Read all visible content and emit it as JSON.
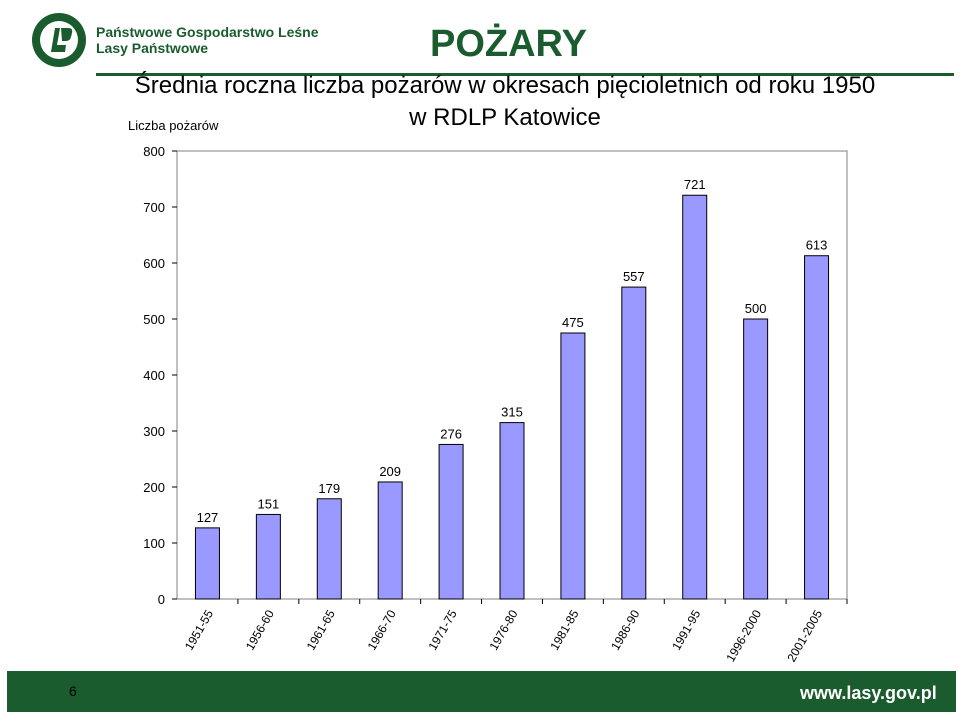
{
  "header": {
    "org_line1": "Państwowe Gospodarstwo Leśne",
    "org_line2": "Lasy Państwowe",
    "section": "POŻARY",
    "logo_text": "LASY PAŃSTWOWE",
    "logo_icon": "lasy-panstwowe-logo-icon"
  },
  "footer": {
    "page_number": "6",
    "url": "www.lasy.gov.pl"
  },
  "colors": {
    "brand_green": "#1a5c2e",
    "bar_fill": "#9999ff"
  },
  "chart_data": {
    "type": "bar",
    "title": "Średnia roczna liczba pożarów w okresach pięcioletnich od roku 1950 w RDLP Katowice",
    "title_lines": [
      "Średnia roczna liczba pożarów w okresach pięcioletnich od roku 1950",
      "w RDLP Katowice"
    ],
    "ylabel": "Liczba pożarów",
    "xlabel": "",
    "categories": [
      "1951-55",
      "1956-60",
      "1961-65",
      "1966-70",
      "1971-75",
      "1976-80",
      "1981-85",
      "1986-90",
      "1991-95",
      "1996-2000",
      "2001-2005"
    ],
    "values": [
      127,
      151,
      179,
      209,
      276,
      315,
      475,
      557,
      721,
      500,
      613
    ],
    "ylim": [
      0,
      800
    ],
    "yticks": [
      0,
      100,
      200,
      300,
      400,
      500,
      600,
      700,
      800
    ],
    "grid": false,
    "legend": "none"
  }
}
